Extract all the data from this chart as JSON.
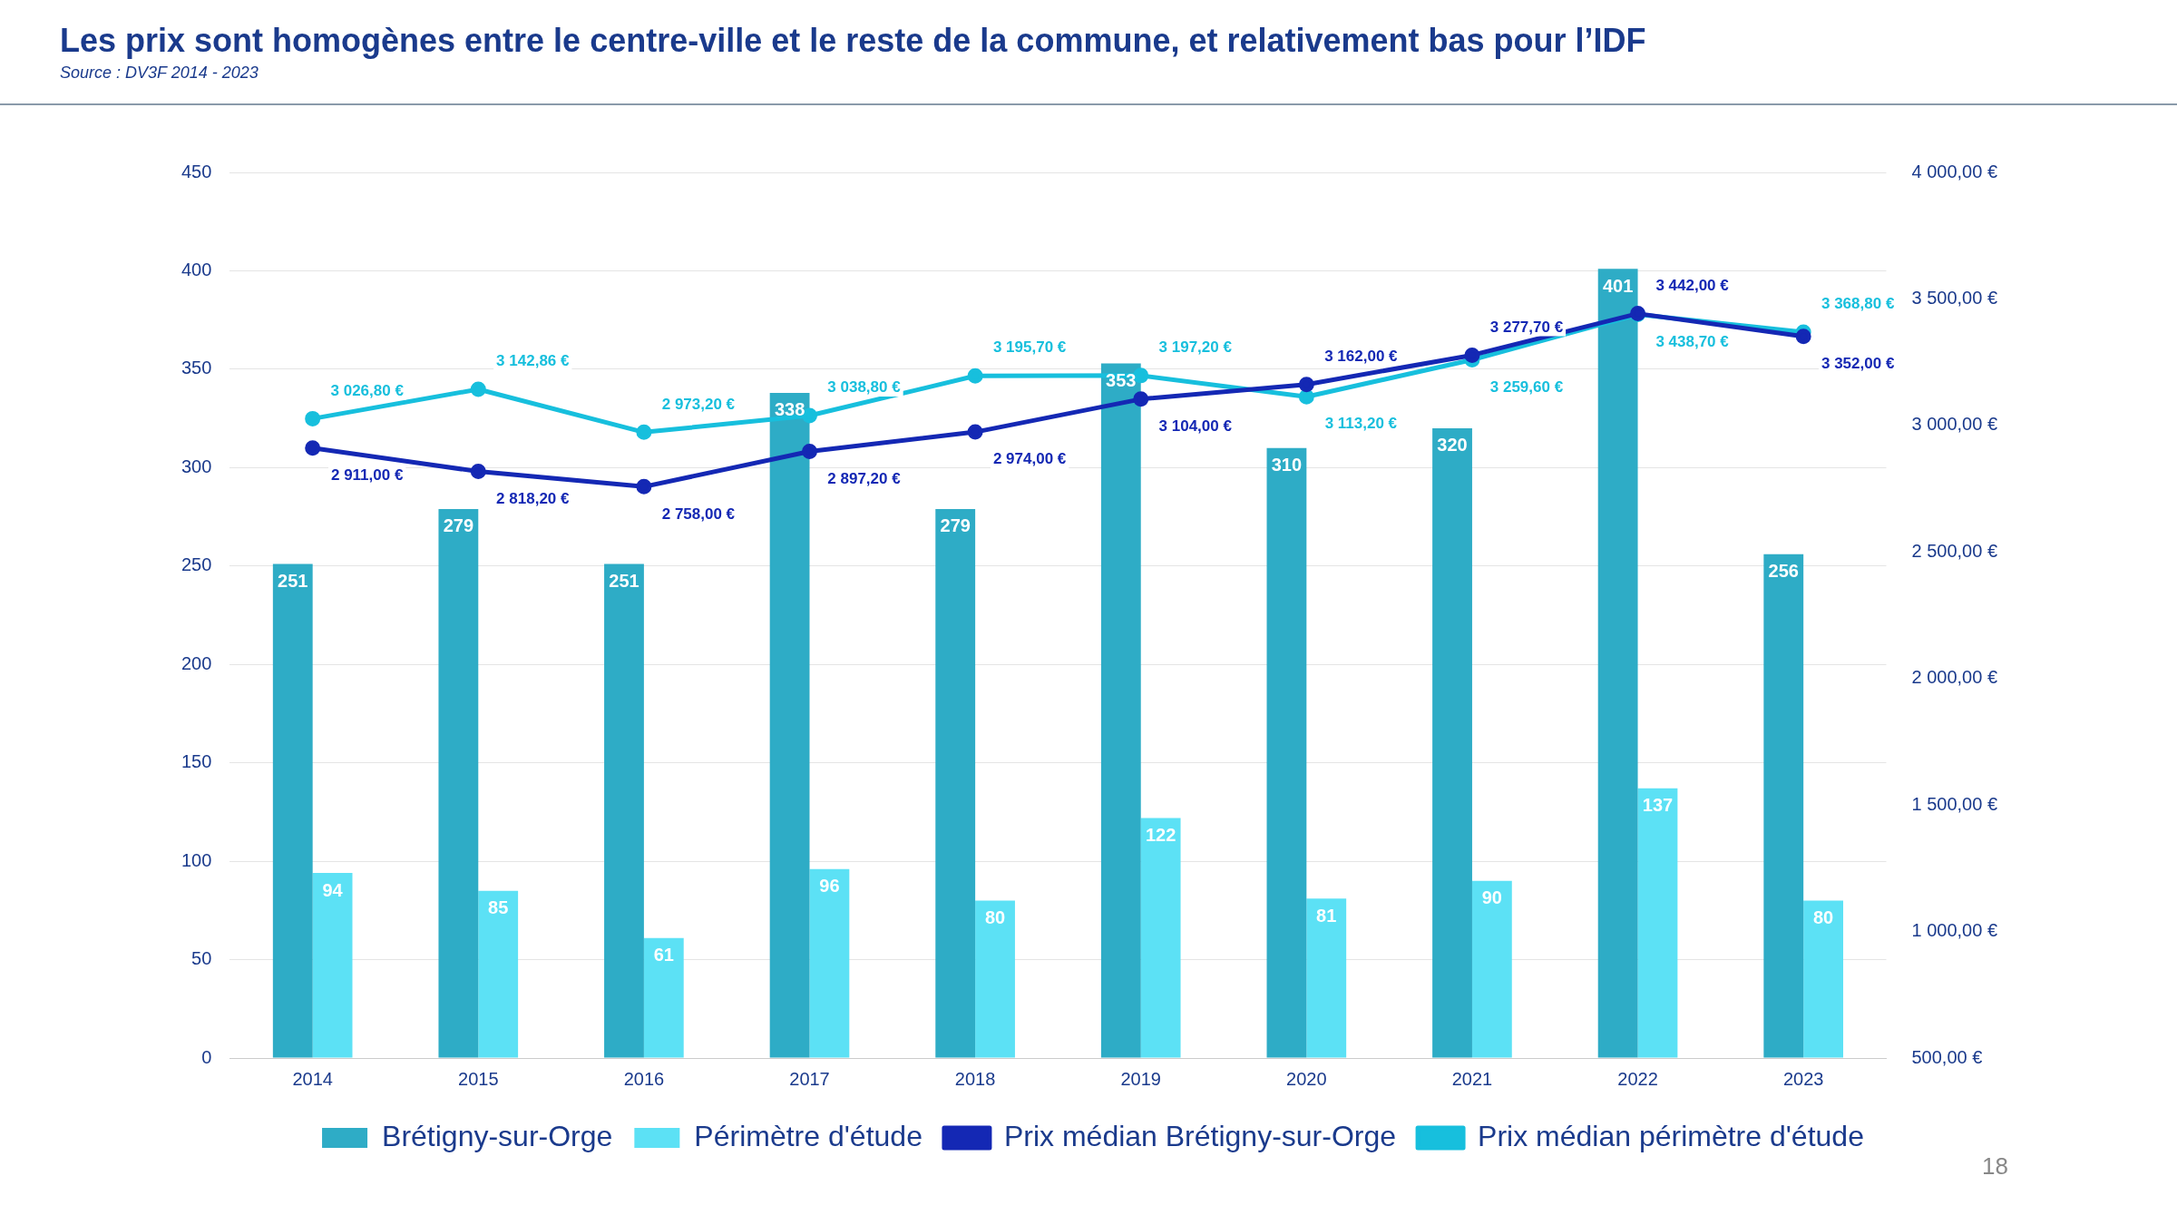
{
  "chart_data": {
    "type": "bar",
    "title": "Les prix sont homogènes entre le centre-ville et le reste de la commune, et relativement bas pour l’IDF",
    "subtitle": "Source : DV3F 2014 - 2023",
    "categories": [
      "2014",
      "2015",
      "2016",
      "2017",
      "2018",
      "2019",
      "2020",
      "2021",
      "2022",
      "2023"
    ],
    "series": [
      {
        "name": "Brétigny-sur-Orge",
        "color": "#2eacc6",
        "values": [
          251,
          279,
          251,
          338,
          279,
          353,
          310,
          320,
          401,
          256
        ],
        "value_labels": [
          "251",
          "279",
          "251",
          "338",
          "279",
          "353",
          "310",
          "320",
          "401",
          "256"
        ]
      },
      {
        "name": "Périmètre d'étude",
        "color": "#5ce1f5",
        "values": [
          94,
          85,
          61,
          96,
          80,
          122,
          81,
          90,
          137,
          80
        ],
        "value_labels": [
          "94",
          "85",
          "61",
          "96",
          "80",
          "122",
          "81",
          "90",
          "137",
          "80"
        ]
      },
      {
        "name": "Prix médian Brétigny-sur-Orge",
        "type": "line",
        "axis": "y2",
        "color": "#1428b4",
        "values": [
          2911,
          2818.2,
          2758,
          2897.2,
          2974,
          3104,
          3162,
          3277.7,
          3442,
          3352
        ],
        "value_labels": [
          "2 911,00 €",
          "2 818,20 €",
          "2 758,00 €",
          "2 897,20 €",
          "2 974,00 €",
          "3 104,00 €",
          "3 162,00 €",
          "3 277,70 €",
          "3 442,00 €",
          "3 352,00 €"
        ]
      },
      {
        "name": "Prix médian périmètre d'étude",
        "type": "line",
        "axis": "y2",
        "color": "#17bfdd",
        "values": [
          3026.8,
          3142.86,
          2973.2,
          3038.8,
          3195.7,
          3197.2,
          3113.2,
          3259.6,
          3438.7,
          3368.8
        ],
        "value_labels": [
          "3 026,80 €",
          "3 142,86 €",
          "2 973,20 €",
          "3 038,80 €",
          "3 195,70 €",
          "3 197,20 €",
          "3 113,20 €",
          "3 259,60 €",
          "3 438,70 €",
          "3 368,80 €"
        ]
      }
    ],
    "ylim": [
      0,
      450
    ],
    "yticks": [
      0,
      50,
      100,
      150,
      200,
      250,
      300,
      350,
      400,
      450
    ],
    "y2lim": [
      500,
      4000
    ],
    "y2ticks": [
      {
        "value": 500,
        "label": "500,00 €"
      },
      {
        "value": 1000,
        "label": "1 000,00 €"
      },
      {
        "value": 1500,
        "label": "1 500,00 €"
      },
      {
        "value": 2000,
        "label": "2 000,00 €"
      },
      {
        "value": 2500,
        "label": "2 500,00 €"
      },
      {
        "value": 3000,
        "label": "3 000,00 €"
      },
      {
        "value": 3500,
        "label": "3 500,00 €"
      },
      {
        "value": 4000,
        "label": "4 000,00 €"
      }
    ],
    "grid": "y",
    "legend": "bottom",
    "marker": "circle",
    "annotations": [
      "18"
    ]
  }
}
